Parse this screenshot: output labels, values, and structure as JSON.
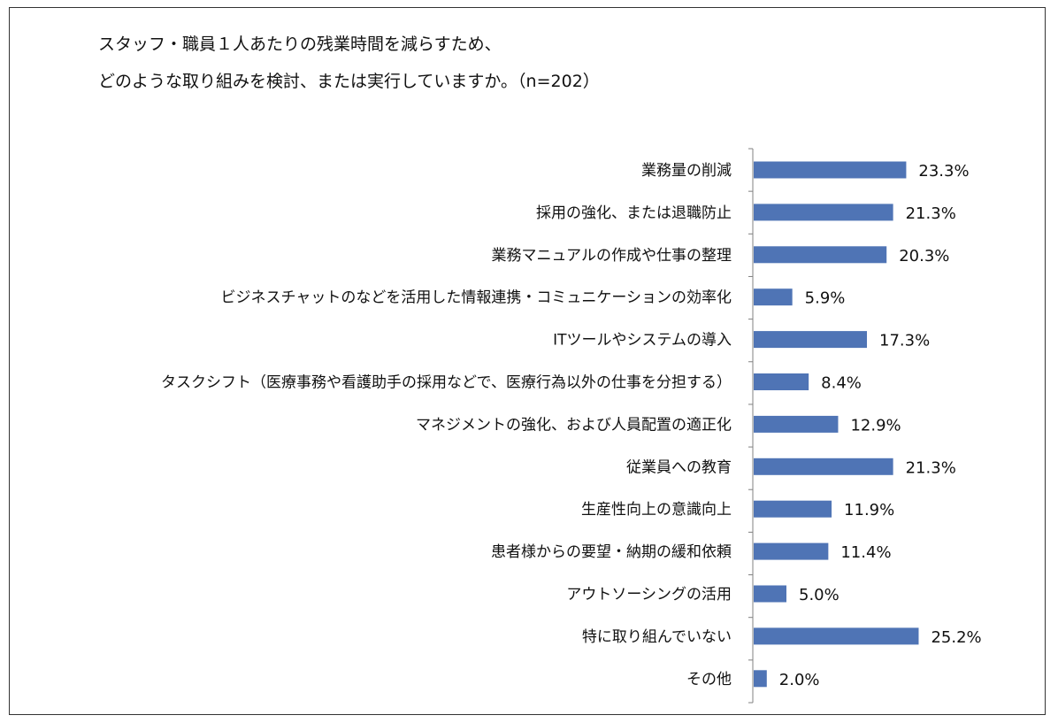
{
  "chart_data": {
    "type": "bar",
    "orientation": "horizontal",
    "title_lines": [
      "スタッフ・職員１人あたりの残業時間を減らすため、",
      "どのような取り組みを検討、または実行していますか。（n=202）"
    ],
    "categories": [
      "業務量の削減",
      "採用の強化、または退職防止",
      "業務マニュアルの作成や仕事の整理",
      "ビジネスチャットのなどを活用した情報連携・コミュニケーションの効率化",
      "ITツールやシステムの導入",
      "タスクシフト（医療事務や看護助手の採用などで、医療行為以外の仕事を分担する）",
      "マネジメントの強化、および人員配置の適正化",
      "従業員への教育",
      "生産性向上の意識向上",
      "患者様からの要望・納期の緩和依頼",
      "アウトソーシングの活用",
      "特に取り組んでいない",
      "その他"
    ],
    "values": [
      23.3,
      21.3,
      20.3,
      5.9,
      17.3,
      8.4,
      12.9,
      21.3,
      11.9,
      11.4,
      5.0,
      25.2,
      2.0
    ],
    "value_labels": [
      "23.3%",
      "21.3%",
      "20.3%",
      "5.9%",
      "17.3%",
      "8.4%",
      "12.9%",
      "21.3%",
      "11.9%",
      "11.4%",
      "5.0%",
      "25.2%",
      "2.0%"
    ],
    "unit": "%",
    "bar_color": "#4f74b5",
    "axis_color": "#808080",
    "grid": false,
    "legend": "none"
  }
}
